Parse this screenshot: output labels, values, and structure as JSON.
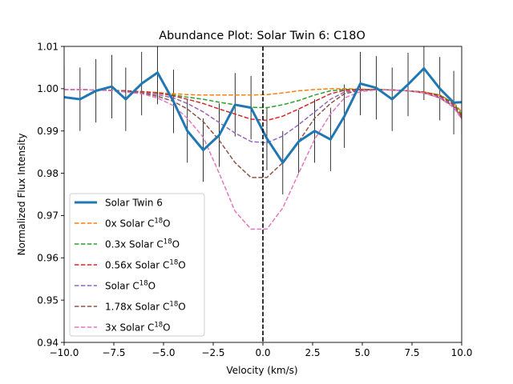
{
  "chart_data": {
    "type": "line",
    "title": "Abundance Plot: Solar Twin 6: C18O",
    "xlabel": "Velocity (km/s)",
    "ylabel": "Normalized Flux Intensity",
    "xlim": [
      -10,
      10
    ],
    "ylim": [
      0.94,
      1.01
    ],
    "xticks": [
      -10,
      -7.5,
      -5,
      -2.5,
      0,
      2.5,
      5,
      7.5,
      10
    ],
    "xtick_labels": [
      "−10.0",
      "−7.5",
      "−5.0",
      "−2.5",
      "0.0",
      "2.5",
      "5.0",
      "7.5",
      "10.0"
    ],
    "yticks": [
      0.94,
      0.95,
      0.96,
      0.97,
      0.98,
      0.99,
      1.0,
      1.01
    ],
    "ytick_labels": [
      "0.94",
      "0.95",
      "0.96",
      "0.97",
      "0.98",
      "0.99",
      "1.00",
      "1.01"
    ],
    "grid": false,
    "legend_position": "lower-left",
    "vline_x": 0,
    "x": [
      -10,
      -9.2,
      -8.4,
      -7.6,
      -6.9,
      -6.1,
      -5.3,
      -4.5,
      -3.8,
      -3.0,
      -2.2,
      -1.4,
      -0.6,
      0.2,
      1.0,
      1.8,
      2.6,
      3.4,
      4.1,
      4.9,
      5.7,
      6.5,
      7.3,
      8.1,
      8.9,
      9.6,
      10
    ],
    "series": [
      {
        "name": "Solar Twin 6",
        "color": "#1f77b4",
        "style": "solid",
        "x": [
          -10,
          -9.2,
          -8.4,
          -7.6,
          -6.9,
          -6.1,
          -5.3,
          -4.5,
          -3.8,
          -3.0,
          -2.2,
          -1.4,
          -0.6,
          0.2,
          1.0,
          1.8,
          2.6,
          3.4,
          4.1,
          4.9,
          5.7,
          6.5,
          7.3,
          8.1,
          8.9,
          9.6,
          10
        ],
        "values": [
          0.998,
          0.9975,
          0.9995,
          1.0005,
          0.9975,
          1.0012,
          1.0038,
          0.997,
          0.99,
          0.9855,
          0.989,
          0.9962,
          0.9955,
          0.9882,
          0.9825,
          0.9875,
          0.99,
          0.988,
          0.9935,
          1.0012,
          1.0002,
          0.9975,
          1.001,
          1.0048,
          1.0,
          0.9967,
          0.9968
        ],
        "errors": [
          0.0075,
          0.0075,
          0.0075,
          0.0075,
          0.0075,
          0.0075,
          0.0075,
          0.0075,
          0.0075,
          0.0075,
          0.0075,
          0.0075,
          0.0075,
          0.0075,
          0.0075,
          0.0075,
          0.0075,
          0.0075,
          0.0075,
          0.0075,
          0.0075,
          0.0075,
          0.0075,
          0.0075,
          0.0075,
          0.0075,
          0.0075
        ]
      },
      {
        "name": "0x Solar C¹⁸O",
        "label_main": "0x Solar C",
        "label_sup": "18",
        "label_tail": "O",
        "color": "#ff7f0e",
        "style": "dashed",
        "x": [
          -10,
          -9.2,
          -8.4,
          -7.6,
          -6.9,
          -6.1,
          -5.3,
          -4.5,
          -3.8,
          -3.0,
          -2.2,
          -1.4,
          -0.6,
          0.2,
          1.0,
          1.8,
          2.6,
          3.4,
          4.1,
          4.9,
          5.7,
          6.5,
          7.3,
          8.1,
          8.9,
          9.6,
          10
        ],
        "values": [
          0.9998,
          0.9998,
          0.9997,
          0.9996,
          0.9995,
          0.9993,
          0.9991,
          0.9988,
          0.9986,
          0.9985,
          0.9985,
          0.9985,
          0.9985,
          0.9986,
          0.999,
          0.9995,
          0.9998,
          1.0,
          1.0,
          0.9999,
          0.9998,
          0.9997,
          0.9995,
          0.9992,
          0.9985,
          0.9967,
          0.9945
        ]
      },
      {
        "name": "0.3x Solar C¹⁸O",
        "label_main": "0.3x Solar C",
        "label_sup": "18",
        "label_tail": "O",
        "color": "#2ca02c",
        "style": "dashed",
        "x": [
          -10,
          -9.2,
          -8.4,
          -7.6,
          -6.9,
          -6.1,
          -5.3,
          -4.5,
          -3.8,
          -3.0,
          -2.2,
          -1.4,
          -0.6,
          0.2,
          1.0,
          1.8,
          2.6,
          3.4,
          4.1,
          4.9,
          5.7,
          6.5,
          7.3,
          8.1,
          8.9,
          9.6,
          10
        ],
        "values": [
          0.9998,
          0.9998,
          0.9997,
          0.9996,
          0.9995,
          0.9993,
          0.999,
          0.9985,
          0.998,
          0.9975,
          0.9968,
          0.9962,
          0.9956,
          0.9955,
          0.9962,
          0.9972,
          0.9985,
          0.9995,
          0.9998,
          0.9998,
          0.9998,
          0.9997,
          0.9995,
          0.9992,
          0.9985,
          0.9965,
          0.994
        ]
      },
      {
        "name": "0.56x Solar C¹⁸O",
        "label_main": "0.56x Solar C",
        "label_sup": "18",
        "label_tail": "O",
        "color": "#d62728",
        "style": "dashed",
        "x": [
          -10,
          -9.2,
          -8.4,
          -7.6,
          -6.9,
          -6.1,
          -5.3,
          -4.5,
          -3.8,
          -3.0,
          -2.2,
          -1.4,
          -0.6,
          0.2,
          1.0,
          1.8,
          2.6,
          3.4,
          4.1,
          4.9,
          5.7,
          6.5,
          7.3,
          8.1,
          8.9,
          9.6,
          10
        ],
        "values": [
          0.9998,
          0.9998,
          0.9997,
          0.9996,
          0.9995,
          0.9993,
          0.999,
          0.9983,
          0.9975,
          0.9965,
          0.9952,
          0.994,
          0.9928,
          0.9925,
          0.9935,
          0.9952,
          0.997,
          0.9988,
          0.9996,
          0.9998,
          0.9998,
          0.9997,
          0.9995,
          0.9992,
          0.9983,
          0.9962,
          0.9935
        ]
      },
      {
        "name": "Solar C¹⁸O",
        "label_main": "Solar C",
        "label_sup": "18",
        "label_tail": "O",
        "color": "#9467bd",
        "style": "dashed",
        "x": [
          -10,
          -9.2,
          -8.4,
          -7.6,
          -6.9,
          -6.1,
          -5.3,
          -4.5,
          -3.8,
          -3.0,
          -2.2,
          -1.4,
          -0.6,
          0.2,
          1.0,
          1.8,
          2.6,
          3.4,
          4.1,
          4.9,
          5.7,
          6.5,
          7.3,
          8.1,
          8.9,
          9.6,
          10
        ],
        "values": [
          0.9998,
          0.9998,
          0.9997,
          0.9996,
          0.9994,
          0.9991,
          0.9986,
          0.9978,
          0.9965,
          0.9945,
          0.992,
          0.9895,
          0.9875,
          0.9872,
          0.9888,
          0.9915,
          0.9945,
          0.9975,
          0.9992,
          0.9997,
          0.9998,
          0.9997,
          0.9995,
          0.999,
          0.998,
          0.996,
          0.993
        ]
      },
      {
        "name": "1.78x Solar C¹⁸O",
        "label_main": "1.78x Solar C",
        "label_sup": "18",
        "label_tail": "O",
        "color": "#8c564b",
        "style": "dashed",
        "x": [
          -10,
          -9.2,
          -8.4,
          -7.6,
          -6.9,
          -6.1,
          -5.3,
          -4.5,
          -3.8,
          -3.0,
          -2.2,
          -1.4,
          -0.6,
          0.2,
          1.0,
          1.8,
          2.6,
          3.4,
          4.1,
          4.9,
          5.7,
          6.5,
          7.3,
          8.1,
          8.9,
          9.6,
          10
        ],
        "values": [
          0.9998,
          0.9998,
          0.9997,
          0.9996,
          0.9994,
          0.999,
          0.9982,
          0.997,
          0.9952,
          0.9922,
          0.9878,
          0.9825,
          0.979,
          0.979,
          0.9825,
          0.9875,
          0.993,
          0.9965,
          0.9988,
          0.9996,
          0.9998,
          0.9997,
          0.9995,
          0.999,
          0.9978,
          0.9958,
          0.993
        ]
      },
      {
        "name": "3x Solar C¹⁸O",
        "label_main": "3x Solar C",
        "label_sup": "18",
        "label_tail": "O",
        "color": "#e377c2",
        "style": "dashed",
        "x": [
          -10,
          -9.2,
          -8.4,
          -7.6,
          -6.9,
          -6.1,
          -5.3,
          -4.5,
          -3.8,
          -3.0,
          -2.2,
          -1.4,
          -0.6,
          0.2,
          1.0,
          1.8,
          2.6,
          3.4,
          4.1,
          4.9,
          5.7,
          6.5,
          7.3,
          8.1,
          8.9,
          9.6,
          10
        ],
        "values": [
          0.9998,
          0.9998,
          0.9997,
          0.9995,
          0.9992,
          0.9988,
          0.9978,
          0.996,
          0.993,
          0.9885,
          0.98,
          0.971,
          0.9668,
          0.9668,
          0.9718,
          0.98,
          0.988,
          0.994,
          0.9978,
          0.9993,
          0.9997,
          0.9997,
          0.9995,
          0.999,
          0.9978,
          0.9955,
          0.9928
        ]
      }
    ]
  }
}
